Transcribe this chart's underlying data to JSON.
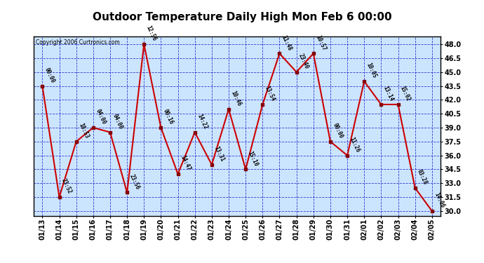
{
  "title": "Outdoor Temperature Daily High Mon Feb 6 00:00",
  "copyright": "Copyright 2006 Curtronics.com",
  "x_labels": [
    "01/13",
    "01/14",
    "01/15",
    "01/16",
    "01/17",
    "01/18",
    "01/19",
    "01/20",
    "01/21",
    "01/22",
    "01/23",
    "01/24",
    "01/25",
    "01/26",
    "01/27",
    "01/28",
    "01/29",
    "01/30",
    "01/31",
    "02/01",
    "02/02",
    "02/03",
    "02/04",
    "02/05"
  ],
  "y_values": [
    43.5,
    31.5,
    37.5,
    39.0,
    38.5,
    32.0,
    48.0,
    39.0,
    34.0,
    38.5,
    35.0,
    41.0,
    34.5,
    41.5,
    47.0,
    45.0,
    47.0,
    37.5,
    36.0,
    44.0,
    41.5,
    41.5,
    32.5,
    30.0
  ],
  "point_labels": [
    "00:00",
    "23:52",
    "18:53",
    "04:00",
    "04:00",
    "23:56",
    "12:56",
    "00:16",
    "14:47",
    "14:22",
    "13:31",
    "10:46",
    "15:10",
    "13:54",
    "11:48",
    "23:40",
    "10:57",
    "00:00",
    "11:26",
    "10:05",
    "13:14",
    "15:02",
    "03:28",
    "14:06"
  ],
  "ylim_min": 29.5,
  "ylim_max": 48.8,
  "yticks": [
    30.0,
    31.5,
    33.0,
    34.5,
    36.0,
    37.5,
    39.0,
    40.5,
    42.0,
    43.5,
    45.0,
    46.5,
    48.0
  ],
  "line_color": "#cc0000",
  "marker_color": "#880000",
  "bg_color": "#cce5ff",
  "grid_color": "#0000bb",
  "title_color": "#000000",
  "label_color": "#000000",
  "border_color": "#000000",
  "copyright_color": "#000000"
}
